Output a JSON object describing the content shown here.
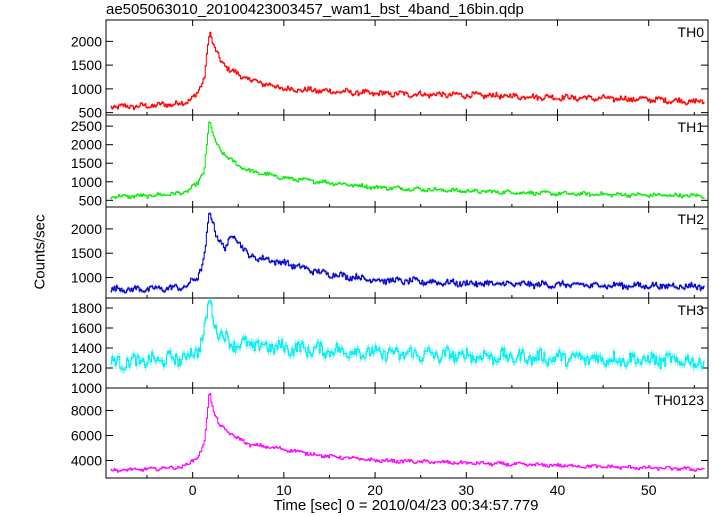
{
  "title": "ae505063010_20100423003457_wam1_bst_4band_16bin.qdp",
  "chart_data": {
    "type": "line",
    "title": "ae505063010_20100423003457_wam1_bst_4band_16bin.qdp",
    "xlabel": "Time [sec] 0 = 2010/04/23 00:34:57.779",
    "ylabel": "Counts/sec",
    "xlim": [
      -9.5,
      56.5
    ],
    "x_ticks": [
      0,
      10,
      20,
      30,
      40,
      50
    ],
    "x_tick_labels": [
      "0",
      "10",
      "20",
      "30",
      "40",
      "50"
    ],
    "panels": [
      {
        "name": "TH0",
        "color": "#ff0000",
        "ylim": [
          450,
          2450
        ],
        "y_ticks": [
          500,
          1000,
          1500,
          2000
        ],
        "y_tick_labels": [
          "500",
          "1000",
          "1500",
          "2000"
        ],
        "baseline": 680,
        "base_end": 900,
        "peak": 2300,
        "decay_floor": 820,
        "tau": 8,
        "noise": 50,
        "envelope": [
          [
            -9,
            620
          ],
          [
            -5,
            640
          ],
          [
            -1,
            700
          ],
          [
            0.5,
            900
          ],
          [
            1.2,
            1200
          ],
          [
            1.8,
            2250
          ],
          [
            2.2,
            1900
          ],
          [
            3,
            1600
          ],
          [
            4,
            1400
          ],
          [
            6,
            1200
          ],
          [
            10,
            1000
          ],
          [
            20,
            900
          ],
          [
            30,
            870
          ],
          [
            40,
            820
          ],
          [
            50,
            780
          ],
          [
            56,
            720
          ]
        ]
      },
      {
        "name": "TH1",
        "color": "#00ee00",
        "ylim": [
          320,
          2800
        ],
        "y_ticks": [
          500,
          1000,
          1500,
          2000,
          2500
        ],
        "y_tick_labels": [
          "500",
          "1000",
          "1500",
          "2000",
          "2500"
        ],
        "envelope": [
          [
            -9,
            600
          ],
          [
            -5,
            620
          ],
          [
            -1,
            700
          ],
          [
            0.5,
            950
          ],
          [
            1.2,
            1300
          ],
          [
            1.8,
            2700
          ],
          [
            2.2,
            2200
          ],
          [
            3,
            1850
          ],
          [
            4,
            1600
          ],
          [
            6,
            1300
          ],
          [
            10,
            1100
          ],
          [
            20,
            850
          ],
          [
            30,
            750
          ],
          [
            40,
            680
          ],
          [
            50,
            640
          ],
          [
            56,
            620
          ]
        ],
        "noise": 45
      },
      {
        "name": "TH2",
        "color": "#0000cc",
        "ylim": [
          580,
          2450
        ],
        "y_ticks": [
          1000,
          1500,
          2000
        ],
        "y_tick_labels": [
          "1000",
          "1500",
          "2000"
        ],
        "envelope": [
          [
            -9,
            760
          ],
          [
            -5,
            760
          ],
          [
            -1,
            800
          ],
          [
            0.5,
            1000
          ],
          [
            1.2,
            1400
          ],
          [
            1.8,
            2350
          ],
          [
            2.5,
            1900
          ],
          [
            3.5,
            1600
          ],
          [
            4.5,
            1900
          ],
          [
            6,
            1450
          ],
          [
            10,
            1300
          ],
          [
            14,
            1100
          ],
          [
            20,
            950
          ],
          [
            30,
            880
          ],
          [
            40,
            850
          ],
          [
            50,
            830
          ],
          [
            56,
            820
          ]
        ],
        "noise": 55
      },
      {
        "name": "TH3",
        "color": "#00eeee",
        "ylim": [
          1000,
          1900
        ],
        "y_ticks": [
          1000,
          1200,
          1400,
          1600,
          1800
        ],
        "y_tick_labels": [
          "1000",
          "1200",
          "1400",
          "1600",
          "1800"
        ],
        "envelope": [
          [
            -9,
            1250
          ],
          [
            -5,
            1270
          ],
          [
            -1,
            1300
          ],
          [
            0.5,
            1380
          ],
          [
            1.2,
            1550
          ],
          [
            1.8,
            1880
          ],
          [
            2.5,
            1600
          ],
          [
            4,
            1450
          ],
          [
            10,
            1400
          ],
          [
            20,
            1350
          ],
          [
            30,
            1320
          ],
          [
            40,
            1300
          ],
          [
            50,
            1280
          ],
          [
            56,
            1260
          ]
        ],
        "noise": 60
      },
      {
        "name": "TH0123",
        "color": "#ff00ff",
        "ylim": [
          2600,
          9800
        ],
        "y_ticks": [
          4000,
          6000,
          8000
        ],
        "y_tick_labels": [
          "4000",
          "6000",
          "8000"
        ],
        "envelope": [
          [
            -9,
            3200
          ],
          [
            -5,
            3300
          ],
          [
            -1,
            3500
          ],
          [
            0.5,
            4300
          ],
          [
            1.2,
            5200
          ],
          [
            1.8,
            9600
          ],
          [
            2.2,
            8000
          ],
          [
            3,
            6700
          ],
          [
            4,
            6200
          ],
          [
            6,
            5300
          ],
          [
            10,
            4900
          ],
          [
            14,
            4400
          ],
          [
            20,
            4000
          ],
          [
            30,
            3800
          ],
          [
            40,
            3600
          ],
          [
            50,
            3400
          ],
          [
            56,
            3300
          ]
        ],
        "noise": 120
      }
    ]
  }
}
